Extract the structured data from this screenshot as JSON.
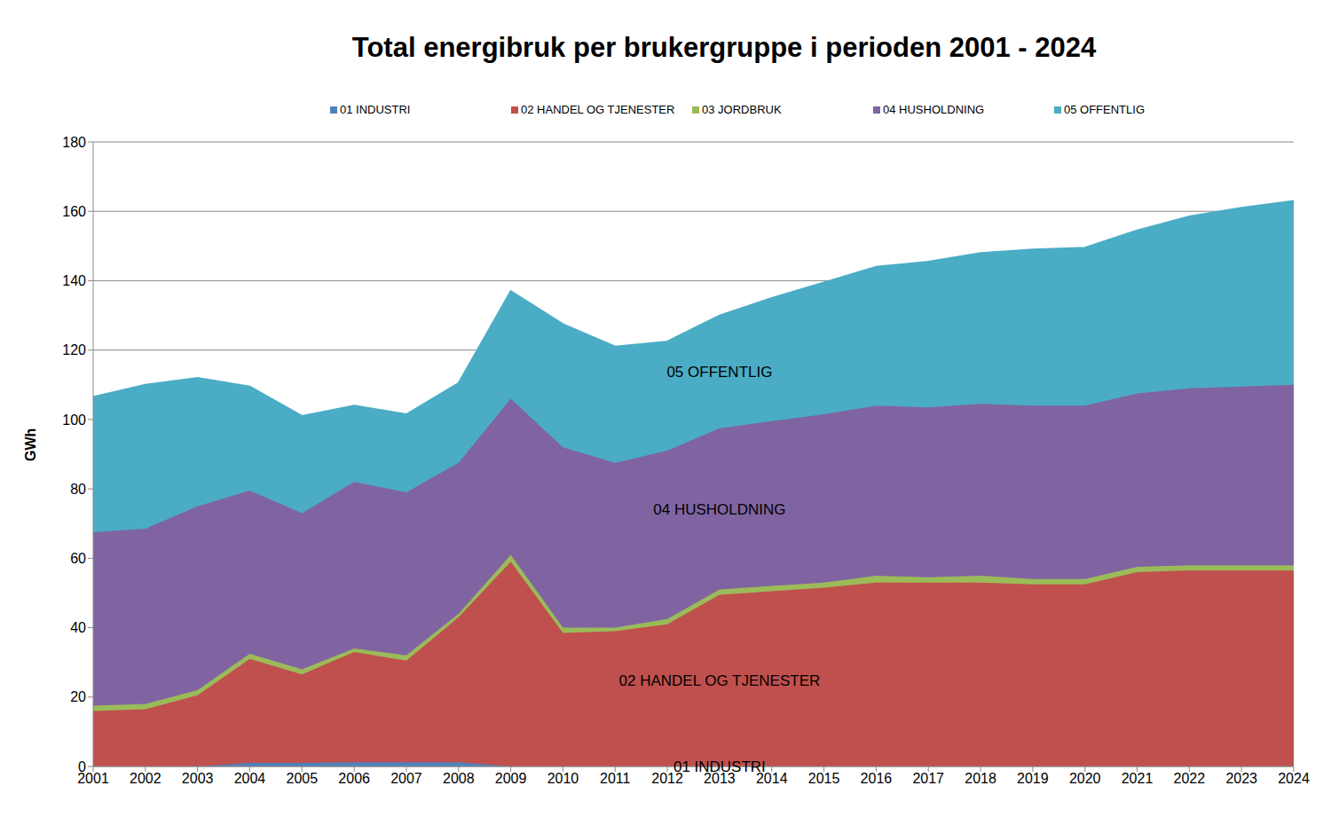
{
  "chart_data": {
    "type": "area",
    "stacked": true,
    "title": "Total energibruk per brukergruppe i perioden 2001 - 2024",
    "y_label": "GWh",
    "categories": [
      "2001",
      "2002",
      "2003",
      "2004",
      "2005",
      "2006",
      "2007",
      "2008",
      "2009",
      "2010",
      "2011",
      "2012",
      "2013",
      "2014",
      "2015",
      "2016",
      "2017",
      "2018",
      "2019",
      "2020",
      "2021",
      "2022",
      "2023",
      "2024"
    ],
    "series": [
      {
        "name": "01 INDUSTRI",
        "color": "#4f81bd",
        "values": [
          0,
          0,
          0,
          1,
          1,
          1.2,
          1.2,
          1.2,
          0,
          0,
          0,
          0,
          0,
          0,
          0,
          0,
          0,
          0,
          0,
          0,
          0,
          0,
          0,
          0
        ]
      },
      {
        "name": "02 HANDEL OG TJENESTER",
        "color": "#c0504d",
        "values": [
          16,
          16.5,
          20.5,
          30,
          25.5,
          31.8,
          29.3,
          41.8,
          59,
          38.5,
          39,
          41,
          49.5,
          50.5,
          51.5,
          53,
          53,
          53,
          52.5,
          52.5,
          56,
          56.5,
          56.5,
          56.5
        ]
      },
      {
        "name": "03 JORDBRUK",
        "color": "#9bbb59",
        "values": [
          1.5,
          1.5,
          1.5,
          1.5,
          1.5,
          1,
          1.5,
          1,
          2,
          1.5,
          1,
          1.5,
          1.5,
          1.5,
          1.5,
          2,
          1.5,
          2,
          1.5,
          1.5,
          1.5,
          1.5,
          1.5,
          1.5
        ]
      },
      {
        "name": "04 HUSHOLDNING",
        "color": "#8064a2",
        "values": [
          50,
          50.5,
          53,
          47,
          45,
          48,
          47,
          43.5,
          45,
          52,
          47.5,
          48.5,
          46.5,
          47.5,
          48.5,
          49,
          49,
          49.5,
          50,
          50,
          50,
          51,
          51.5,
          52
        ]
      },
      {
        "name": "05 OFFENTLIG",
        "color": "#4bacc6",
        "values": [
          39,
          41.5,
          37,
          30,
          28,
          22,
          22.5,
          23,
          31,
          35.5,
          33.5,
          31.5,
          32.5,
          35.5,
          38,
          40,
          42,
          43.5,
          45,
          45.5,
          47,
          49.5,
          51.5,
          53
        ]
      }
    ],
    "annotations": [
      "05 OFFENTLIG",
      "04 HUSHOLDNING",
      "02 HANDEL OG TJENESTER",
      "01 INDUSTRI"
    ],
    "ylim": [
      0,
      180
    ],
    "yticks": [
      0,
      20,
      40,
      60,
      80,
      100,
      120,
      140,
      160,
      180
    ],
    "grid": true,
    "legend": "top"
  }
}
